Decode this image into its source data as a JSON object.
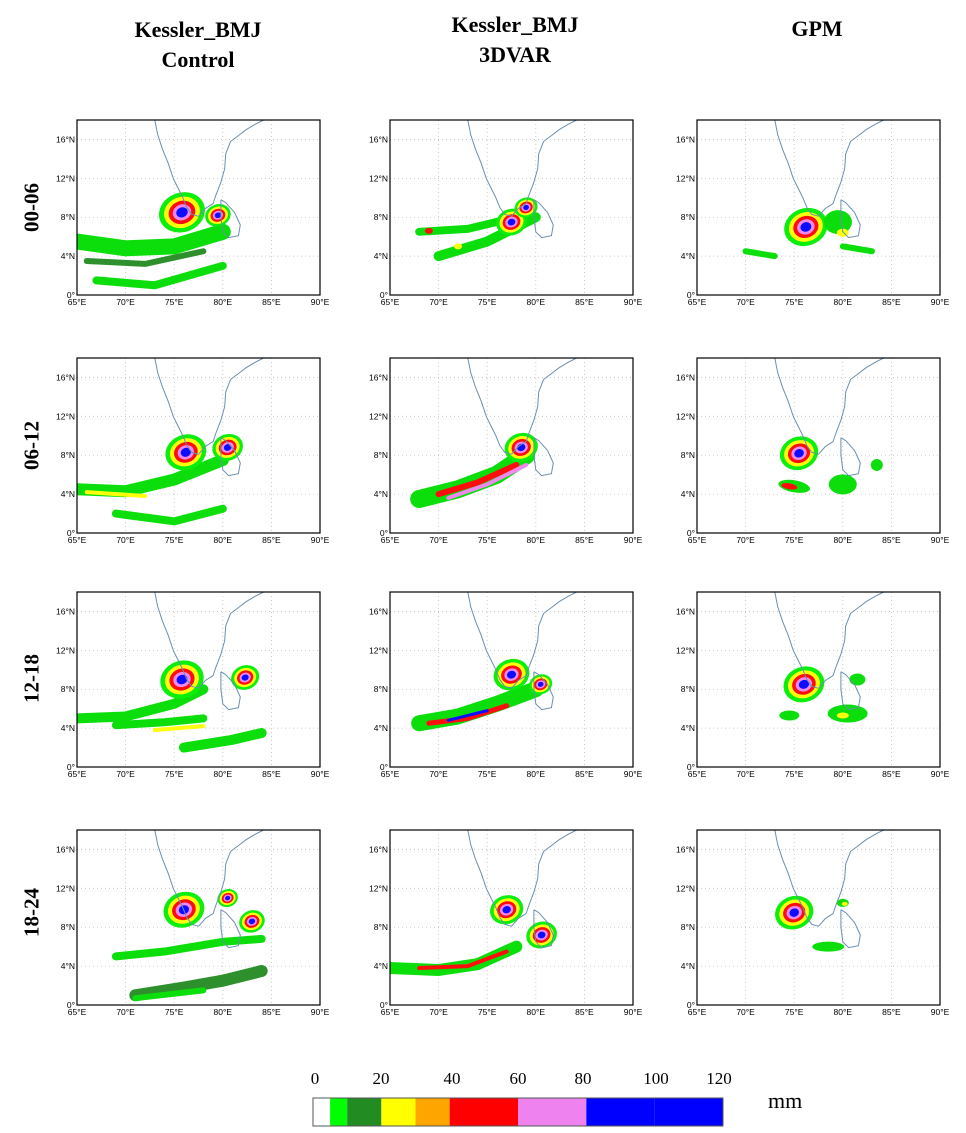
{
  "columns": [
    "Kessler_BMJ\nControl",
    "Kessler_BMJ\n3DVAR",
    "GPM"
  ],
  "column_titles": [
    {
      "line1": "Kessler_BMJ",
      "line2": "Control"
    },
    {
      "line1": "Kessler_BMJ",
      "line2": "3DVAR"
    },
    {
      "line1": "GPM",
      "line2": ""
    }
  ],
  "rows": [
    "00-06",
    "06-12",
    "12-18",
    "18-24"
  ],
  "axes": {
    "x_ticks": [
      "65°E",
      "70°E",
      "75°E",
      "80°E",
      "85°E",
      "90°E"
    ],
    "y_ticks": [
      "0°",
      "4°N",
      "8°N",
      "12°N",
      "16°N"
    ],
    "lon_range": [
      65,
      90
    ],
    "lat_range": [
      0,
      18
    ]
  },
  "colorbar": {
    "ticks": [
      "0",
      "20",
      "40",
      "60",
      "80",
      "100",
      "120"
    ],
    "unit": "mm",
    "colors": [
      "#ffffff",
      "#00ff00",
      "#228b22",
      "#ffff00",
      "#ffa500",
      "#ff0000",
      "#ee82ee",
      "#0000ff",
      "#0000ff"
    ],
    "ranges": [
      [
        0,
        5
      ],
      [
        5,
        10
      ],
      [
        10,
        20
      ],
      [
        20,
        30
      ],
      [
        30,
        40
      ],
      [
        40,
        60
      ],
      [
        60,
        80
      ],
      [
        80,
        100
      ],
      [
        100,
        120
      ]
    ]
  },
  "colors": {
    "coast": "#6a8fb0",
    "grid": "#c0c0c0"
  }
}
